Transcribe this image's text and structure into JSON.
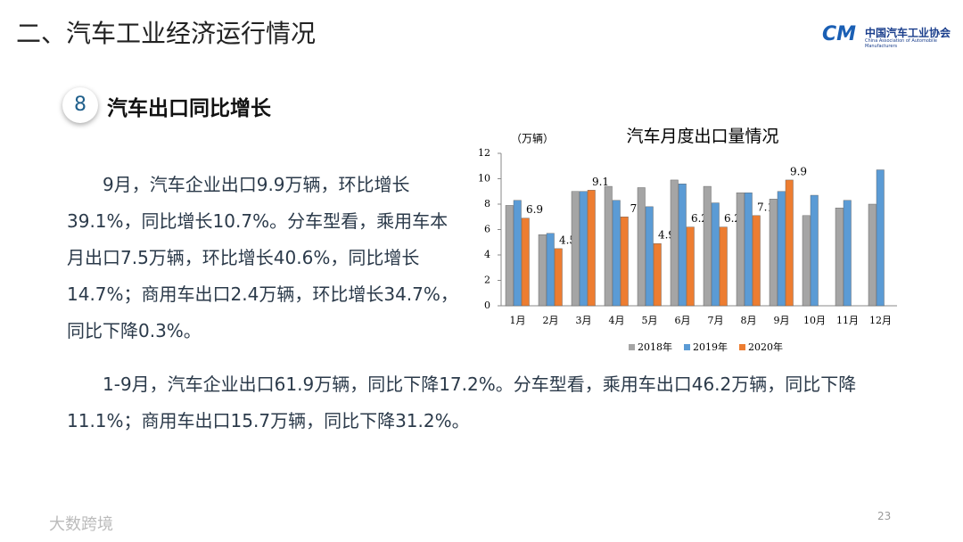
{
  "header": {
    "title": "二、汽车工业经济运行情况",
    "logo_cn": "中国汽车工业协会",
    "logo_en": "China Association of Automobile Manufacturers"
  },
  "section": {
    "number": 8,
    "title": "汽车出口同比增长"
  },
  "paragraphs": [
    "9月，汽车企业出口9.9万辆，环比增长39.1%，同比增长10.7%。分车型看，乘用车本月出口7.5万辆，环比增长40.6%，同比增长14.7%；商用车出口2.4万辆，环比增长34.7%，同比下降0.3%。",
    "1-9月，汽车企业出口61.9万辆，同比下降17.2%。分车型看，乘用车出口46.2万辆，同比下降11.1%；商用车出口15.7万辆，同比下降31.2%。"
  ],
  "chart_data": {
    "type": "bar",
    "title": "汽车月度出口量情况",
    "y_label": "（万辆）",
    "categories": [
      "1月",
      "2月",
      "3月",
      "4月",
      "5月",
      "6月",
      "7月",
      "8月",
      "9月",
      "10月",
      "11月",
      "12月"
    ],
    "series": [
      {
        "name": "2018年",
        "color": "#a5a5a5",
        "values": [
          7.9,
          5.6,
          9.0,
          9.4,
          9.3,
          9.9,
          9.4,
          8.9,
          8.4,
          7.1,
          7.7,
          8.0
        ]
      },
      {
        "name": "2019年",
        "color": "#5b9bd5",
        "values": [
          8.3,
          5.7,
          9.0,
          8.3,
          7.8,
          9.6,
          8.1,
          8.9,
          9.0,
          8.7,
          8.3,
          10.7
        ]
      },
      {
        "name": "2020年",
        "color": "#ed7d31",
        "values": [
          6.9,
          4.5,
          9.1,
          7,
          4.9,
          6.2,
          6.2,
          7.1,
          9.9,
          null,
          null,
          null
        ],
        "data_labels": true
      }
    ],
    "ylim": [
      0,
      12
    ],
    "yticks": [
      0,
      2,
      4,
      6,
      8,
      10,
      12
    ],
    "legend": "bottom",
    "grid": false
  },
  "page_number": 23,
  "watermark": "大数跨境"
}
